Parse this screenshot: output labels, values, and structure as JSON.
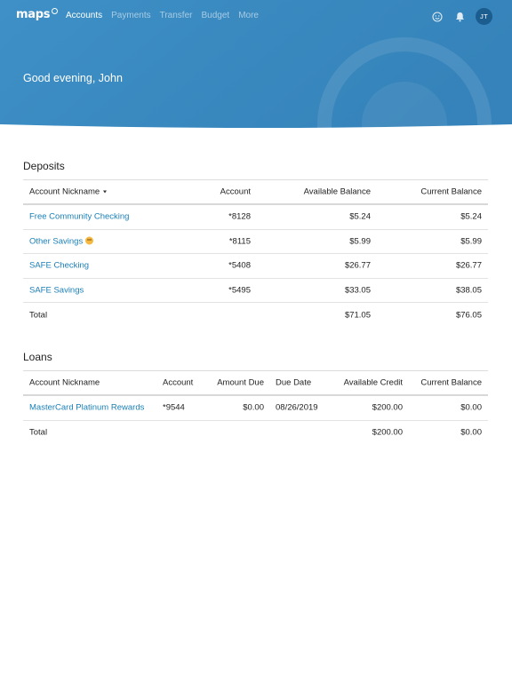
{
  "brand": {
    "name": "maps"
  },
  "nav": {
    "items": [
      {
        "label": "Accounts",
        "active": true
      },
      {
        "label": "Payments",
        "active": false
      },
      {
        "label": "Transfer",
        "active": false
      },
      {
        "label": "Budget",
        "active": false
      },
      {
        "label": "More",
        "active": false
      }
    ]
  },
  "header": {
    "icons": [
      "smiley-icon",
      "bell-icon"
    ],
    "avatar_initials": "JT",
    "greeting": "Good evening, John"
  },
  "colors": {
    "header_blue": "#3a8cc2",
    "link": "#1a7fb6",
    "avatar": "#1b5d8e"
  },
  "deposits": {
    "title": "Deposits",
    "columns": [
      "Account Nickname",
      "Account",
      "Available Balance",
      "Current Balance"
    ],
    "rows": [
      {
        "nickname": "Free Community Checking",
        "account": "*8128",
        "available": "$5.24",
        "current": "$5.24"
      },
      {
        "nickname": "Other Savings",
        "emoji": "smiling-face-icon",
        "account": "*8115",
        "available": "$5.99",
        "current": "$5.99"
      },
      {
        "nickname": "SAFE Checking",
        "account": "*5408",
        "available": "$26.77",
        "current": "$26.77"
      },
      {
        "nickname": "SAFE Savings",
        "account": "*5495",
        "available": "$33.05",
        "current": "$38.05"
      }
    ],
    "total": {
      "label": "Total",
      "available": "$71.05",
      "current": "$76.05"
    }
  },
  "loans": {
    "title": "Loans",
    "columns": [
      "Account Nickname",
      "Account",
      "Amount Due",
      "Due Date",
      "Available Credit",
      "Current Balance"
    ],
    "rows": [
      {
        "nickname": "MasterCard Platinum Rewards",
        "account": "*9544",
        "amount_due": "$0.00",
        "due_date": "08/26/2019",
        "available_credit": "$200.00",
        "current": "$0.00"
      }
    ],
    "total": {
      "label": "Total",
      "available_credit": "$200.00",
      "current": "$0.00"
    }
  }
}
